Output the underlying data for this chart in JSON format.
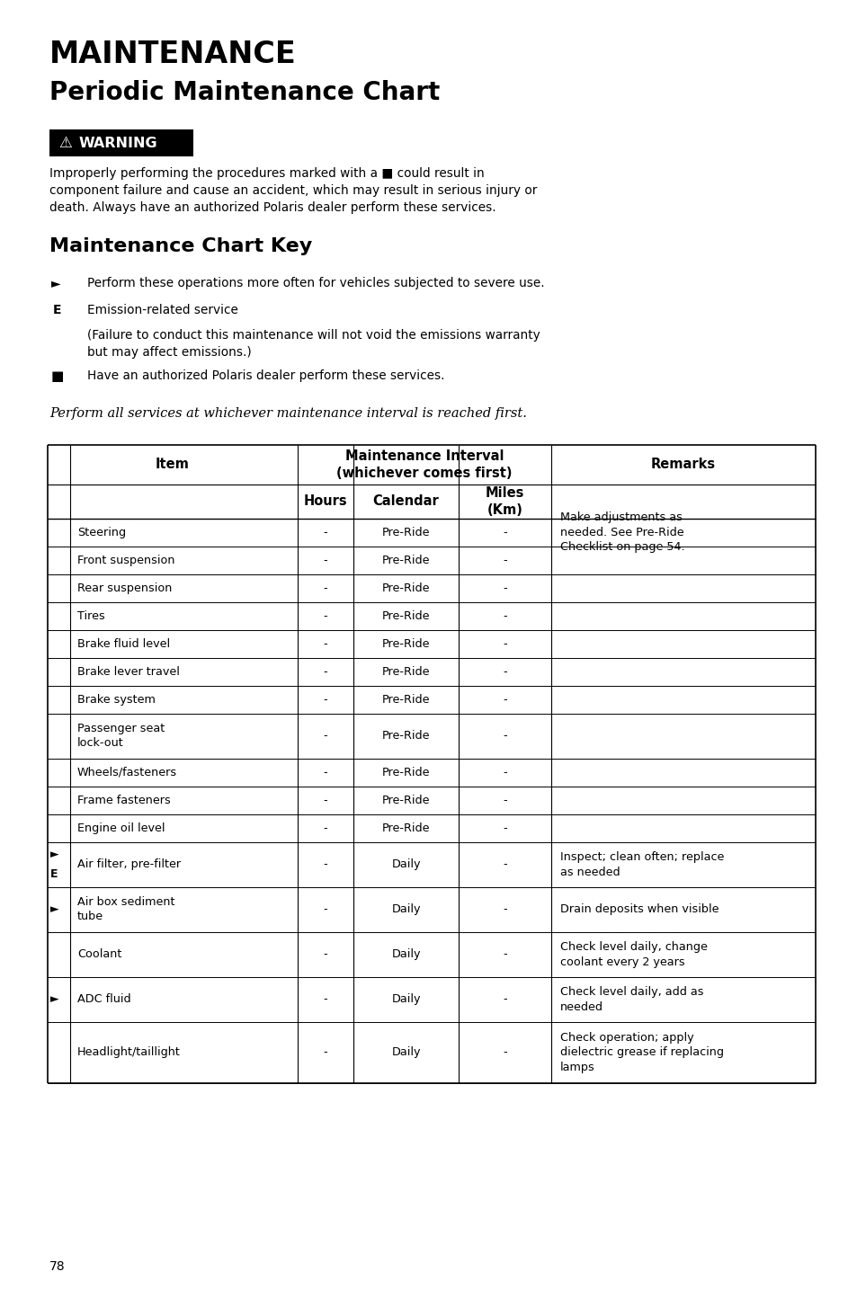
{
  "title1": "MAINTENANCE",
  "title2": "Periodic Maintenance Chart",
  "warning_text": "Improperly performing the procedures marked with a ■ could result in\ncomponent failure and cause an accident, which may result in serious injury or\ndeath. Always have an authorized Polaris dealer perform these services.",
  "section_title": "Maintenance Chart Key",
  "key_items": [
    {
      "symbol": "►",
      "bold": false,
      "text": "Perform these operations more often for vehicles subjected to severe use."
    },
    {
      "symbol": "E",
      "bold": true,
      "text": "Emission-related service"
    },
    {
      "symbol": "",
      "bold": false,
      "text": "(Failure to conduct this maintenance will not void the emissions warranty\nbut may affect emissions.)"
    },
    {
      "symbol": "■",
      "bold": false,
      "text": "Have an authorized Polaris dealer perform these services."
    }
  ],
  "italic_note": "Perform all services at whichever maintenance interval is reached first.",
  "table_rows": [
    {
      "prefix": "",
      "prefix2": "",
      "item": "Steering",
      "hours": "-",
      "calendar": "Pre-Ride",
      "miles": "-",
      "remarks": "Make adjustments as\nneeded. See Pre-Ride\nChecklist on page 54."
    },
    {
      "prefix": "",
      "prefix2": "",
      "item": "Front suspension",
      "hours": "-",
      "calendar": "Pre-Ride",
      "miles": "-",
      "remarks": ""
    },
    {
      "prefix": "",
      "prefix2": "",
      "item": "Rear suspension",
      "hours": "-",
      "calendar": "Pre-Ride",
      "miles": "-",
      "remarks": ""
    },
    {
      "prefix": "",
      "prefix2": "",
      "item": "Tires",
      "hours": "-",
      "calendar": "Pre-Ride",
      "miles": "-",
      "remarks": ""
    },
    {
      "prefix": "",
      "prefix2": "",
      "item": "Brake fluid level",
      "hours": "-",
      "calendar": "Pre-Ride",
      "miles": "-",
      "remarks": ""
    },
    {
      "prefix": "",
      "prefix2": "",
      "item": "Brake lever travel",
      "hours": "-",
      "calendar": "Pre-Ride",
      "miles": "-",
      "remarks": ""
    },
    {
      "prefix": "",
      "prefix2": "",
      "item": "Brake system",
      "hours": "-",
      "calendar": "Pre-Ride",
      "miles": "-",
      "remarks": ""
    },
    {
      "prefix": "",
      "prefix2": "",
      "item": "Passenger seat\nlock-out",
      "hours": "-",
      "calendar": "Pre-Ride",
      "miles": "-",
      "remarks": ""
    },
    {
      "prefix": "",
      "prefix2": "",
      "item": "Wheels/fasteners",
      "hours": "-",
      "calendar": "Pre-Ride",
      "miles": "-",
      "remarks": ""
    },
    {
      "prefix": "",
      "prefix2": "",
      "item": "Frame fasteners",
      "hours": "-",
      "calendar": "Pre-Ride",
      "miles": "-",
      "remarks": ""
    },
    {
      "prefix": "",
      "prefix2": "",
      "item": "Engine oil level",
      "hours": "-",
      "calendar": "Pre-Ride",
      "miles": "-",
      "remarks": ""
    },
    {
      "prefix": "►",
      "prefix2": "E",
      "item": "Air filter, pre-filter",
      "hours": "-",
      "calendar": "Daily",
      "miles": "-",
      "remarks": "Inspect; clean often; replace\nas needed"
    },
    {
      "prefix": "►",
      "prefix2": "",
      "item": "Air box sediment\ntube",
      "hours": "-",
      "calendar": "Daily",
      "miles": "-",
      "remarks": "Drain deposits when visible"
    },
    {
      "prefix": "",
      "prefix2": "",
      "item": "Coolant",
      "hours": "-",
      "calendar": "Daily",
      "miles": "-",
      "remarks": "Check level daily, change\ncoolant every 2 years"
    },
    {
      "prefix": "►",
      "prefix2": "",
      "item": "ADC fluid",
      "hours": "-",
      "calendar": "Daily",
      "miles": "-",
      "remarks": "Check level daily, add as\nneeded"
    },
    {
      "prefix": "",
      "prefix2": "",
      "item": "Headlight/taillight",
      "hours": "-",
      "calendar": "Daily",
      "miles": "-",
      "remarks": "Check operation; apply\ndielectric grease if replacing\nlamps"
    }
  ],
  "page_number": "78",
  "bg_color": "#ffffff",
  "text_color": "#000000",
  "warning_bg": "#000000",
  "warning_text_color": "#ffffff"
}
